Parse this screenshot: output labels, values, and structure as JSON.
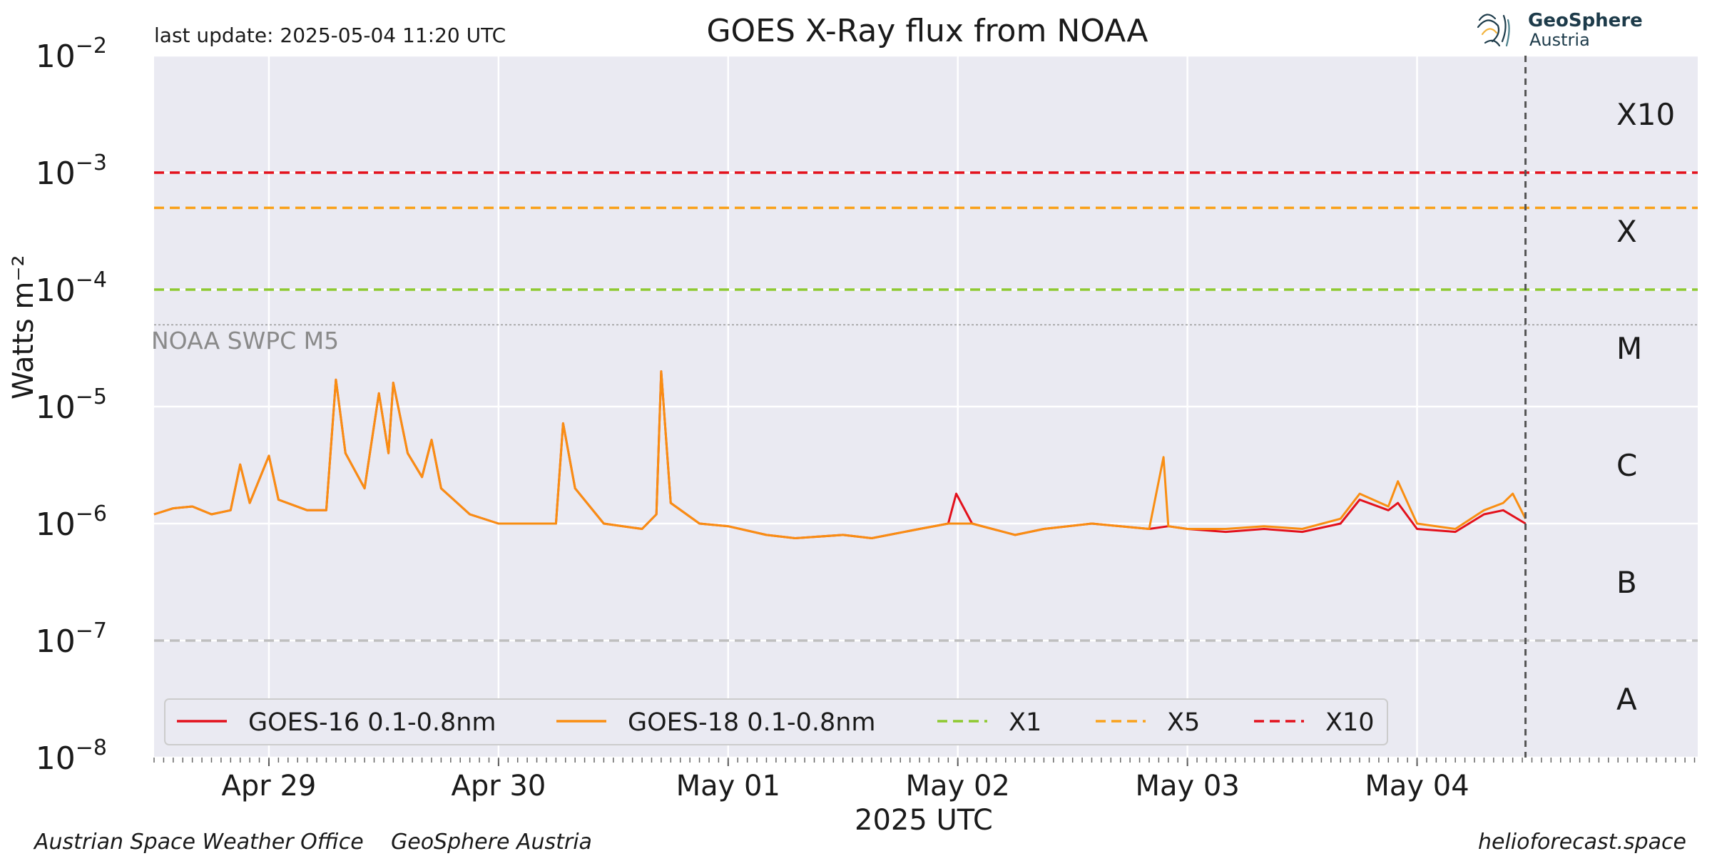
{
  "header": {
    "last_update": "last update: 2025-05-04 11:20 UTC",
    "title": "GOES X-Ray flux from NOAA",
    "logo_line1": "GeoSphere",
    "logo_line2": "Austria"
  },
  "footer": {
    "left1": "Austrian Space Weather Office",
    "left2": "GeoSphere Austria",
    "right": "helioforecast.space"
  },
  "colors": {
    "plot_bg": "#eaeaf2",
    "goes16": "#e3111c",
    "goes18": "#f98e12",
    "x1": "#8ec930",
    "x5": "#f9a21c",
    "x10": "#e3111c",
    "b_line": "#bfbfbf",
    "m5_line": "#999999"
  },
  "chart_data": {
    "type": "line",
    "title": "GOES X-Ray flux from NOAA",
    "xlabel": "2025 UTC",
    "ylabel": "Watts m⁻²",
    "y_scale": "log",
    "ylim": [
      1e-08,
      0.01
    ],
    "xlim": [
      "2025-04-28 12:00",
      "2025-05-05 05:20"
    ],
    "now": "2025-05-04 11:20",
    "x_ticks": [
      {
        "date": "2025-04-29",
        "label": "Apr 29"
      },
      {
        "date": "2025-04-30",
        "label": "Apr 30"
      },
      {
        "date": "2025-05-01",
        "label": "May 01"
      },
      {
        "date": "2025-05-02",
        "label": "May 02"
      },
      {
        "date": "2025-05-03",
        "label": "May 03"
      },
      {
        "date": "2025-05-04",
        "label": "May 04"
      }
    ],
    "y_ticks": [
      {
        "value": 1e-08,
        "base": "10",
        "exp": "−8"
      },
      {
        "value": 1e-07,
        "base": "10",
        "exp": "−7"
      },
      {
        "value": 1e-06,
        "base": "10",
        "exp": "−6"
      },
      {
        "value": 1e-05,
        "base": "10",
        "exp": "−5"
      },
      {
        "value": 0.0001,
        "base": "10",
        "exp": "−4"
      },
      {
        "value": 0.001,
        "base": "10",
        "exp": "−3"
      },
      {
        "value": 0.01,
        "base": "10",
        "exp": "−2"
      }
    ],
    "flare_classes": [
      {
        "label": "A",
        "value": 3.16e-08
      },
      {
        "label": "B",
        "value": 3.16e-07
      },
      {
        "label": "C",
        "value": 3.16e-06
      },
      {
        "label": "M",
        "value": 3.16e-05
      },
      {
        "label": "X",
        "value": 0.000316
      },
      {
        "label": "X10",
        "value": 0.00316
      }
    ],
    "reference_lines": [
      {
        "name": "X1",
        "value": 0.0001,
        "color": "#8ec930",
        "legend": true
      },
      {
        "name": "X5",
        "value": 0.0005,
        "color": "#f9a21c",
        "legend": true
      },
      {
        "name": "X10",
        "value": 0.001,
        "color": "#e3111c",
        "legend": true
      },
      {
        "name": "B",
        "value": 1e-07,
        "color": "#bfbfbf",
        "legend": false
      }
    ],
    "threshold": {
      "label": "NOAA SWPC M5",
      "value": 5e-05
    },
    "legend_position": "lower-left",
    "series": [
      {
        "name": "GOES-16 0.1-0.8nm",
        "color": "#e3111c",
        "points": [
          [
            "2025-04-28 12:00",
            1.2e-06
          ],
          [
            "2025-04-28 14:00",
            1.35e-06
          ],
          [
            "2025-04-28 16:00",
            1.4e-06
          ],
          [
            "2025-04-28 18:00",
            1.2e-06
          ],
          [
            "2025-04-28 20:00",
            1.3e-06
          ],
          [
            "2025-04-28 21:00",
            3.2e-06
          ],
          [
            "2025-04-28 22:00",
            1.5e-06
          ],
          [
            "2025-04-29 00:00",
            3.8e-06
          ],
          [
            "2025-04-29 01:00",
            1.6e-06
          ],
          [
            "2025-04-29 04:00",
            1.3e-06
          ],
          [
            "2025-04-29 06:00",
            1.3e-06
          ],
          [
            "2025-04-29 07:00",
            1.7e-05
          ],
          [
            "2025-04-29 08:00",
            4e-06
          ],
          [
            "2025-04-29 10:00",
            2e-06
          ],
          [
            "2025-04-29 11:30",
            1.3e-05
          ],
          [
            "2025-04-29 12:30",
            4e-06
          ],
          [
            "2025-04-29 13:00",
            1.6e-05
          ],
          [
            "2025-04-29 14:30",
            4e-06
          ],
          [
            "2025-04-29 16:00",
            2.5e-06
          ],
          [
            "2025-04-29 17:00",
            5.2e-06
          ],
          [
            "2025-04-29 18:00",
            2e-06
          ],
          [
            "2025-04-29 21:00",
            1.2e-06
          ],
          [
            "2025-04-30 00:00",
            1e-06
          ],
          [
            "2025-04-30 04:00",
            1e-06
          ],
          [
            "2025-04-30 06:00",
            1e-06
          ],
          [
            "2025-04-30 06:45",
            7.2e-06
          ],
          [
            "2025-04-30 08:00",
            2e-06
          ],
          [
            "2025-04-30 11:00",
            1e-06
          ],
          [
            "2025-04-30 15:00",
            9e-07
          ],
          [
            "2025-04-30 16:30",
            1.2e-06
          ],
          [
            "2025-04-30 17:00",
            2e-05
          ],
          [
            "2025-04-30 18:00",
            1.5e-06
          ],
          [
            "2025-04-30 21:00",
            1e-06
          ],
          [
            "2025-05-01 00:00",
            9.5e-07
          ],
          [
            "2025-05-01 04:00",
            8e-07
          ],
          [
            "2025-05-01 07:00",
            7.5e-07
          ],
          [
            "2025-05-01 12:00",
            8e-07
          ],
          [
            "2025-05-01 15:00",
            7.5e-07
          ],
          [
            "2025-05-01 20:00",
            9e-07
          ],
          [
            "2025-05-01 23:00",
            1e-06
          ],
          [
            "2025-05-01 23:50",
            1.8e-06
          ],
          [
            "2025-05-02 01:30",
            1e-06
          ],
          [
            "2025-05-02 06:00",
            8e-07
          ],
          [
            "2025-05-02 09:00",
            9e-07
          ],
          [
            "2025-05-02 14:00",
            1e-06
          ],
          [
            "2025-05-02 20:00",
            9e-07
          ],
          [
            "2025-05-02 22:00",
            9.5e-07
          ],
          [
            "2025-05-03 00:00",
            9e-07
          ],
          [
            "2025-05-03 04:00",
            8.5e-07
          ],
          [
            "2025-05-03 08:00",
            9e-07
          ],
          [
            "2025-05-03 12:00",
            8.5e-07
          ],
          [
            "2025-05-03 16:00",
            1e-06
          ],
          [
            "2025-05-03 18:00",
            1.6e-06
          ],
          [
            "2025-05-03 21:00",
            1.3e-06
          ],
          [
            "2025-05-03 22:00",
            1.5e-06
          ],
          [
            "2025-05-04 00:00",
            9e-07
          ],
          [
            "2025-05-04 04:00",
            8.5e-07
          ],
          [
            "2025-05-04 07:00",
            1.2e-06
          ],
          [
            "2025-05-04 09:00",
            1.3e-06
          ],
          [
            "2025-05-04 11:20",
            1e-06
          ]
        ]
      },
      {
        "name": "GOES-18 0.1-0.8nm",
        "color": "#f98e12",
        "points": [
          [
            "2025-04-28 12:00",
            1.2e-06
          ],
          [
            "2025-04-28 14:00",
            1.35e-06
          ],
          [
            "2025-04-28 16:00",
            1.4e-06
          ],
          [
            "2025-04-28 18:00",
            1.2e-06
          ],
          [
            "2025-04-28 20:00",
            1.3e-06
          ],
          [
            "2025-04-28 21:00",
            3.2e-06
          ],
          [
            "2025-04-28 22:00",
            1.5e-06
          ],
          [
            "2025-04-29 00:00",
            3.8e-06
          ],
          [
            "2025-04-29 01:00",
            1.6e-06
          ],
          [
            "2025-04-29 04:00",
            1.3e-06
          ],
          [
            "2025-04-29 06:00",
            1.3e-06
          ],
          [
            "2025-04-29 07:00",
            1.7e-05
          ],
          [
            "2025-04-29 08:00",
            4e-06
          ],
          [
            "2025-04-29 10:00",
            2e-06
          ],
          [
            "2025-04-29 11:30",
            1.3e-05
          ],
          [
            "2025-04-29 12:30",
            4e-06
          ],
          [
            "2025-04-29 13:00",
            1.6e-05
          ],
          [
            "2025-04-29 14:30",
            4e-06
          ],
          [
            "2025-04-29 16:00",
            2.5e-06
          ],
          [
            "2025-04-29 17:00",
            5.2e-06
          ],
          [
            "2025-04-29 18:00",
            2e-06
          ],
          [
            "2025-04-29 21:00",
            1.2e-06
          ],
          [
            "2025-04-30 00:00",
            1e-06
          ],
          [
            "2025-04-30 04:00",
            1e-06
          ],
          [
            "2025-04-30 06:00",
            1e-06
          ],
          [
            "2025-04-30 06:45",
            7.2e-06
          ],
          [
            "2025-04-30 08:00",
            2e-06
          ],
          [
            "2025-04-30 11:00",
            1e-06
          ],
          [
            "2025-04-30 15:00",
            9e-07
          ],
          [
            "2025-04-30 16:30",
            1.2e-06
          ],
          [
            "2025-04-30 17:00",
            2e-05
          ],
          [
            "2025-04-30 18:00",
            1.5e-06
          ],
          [
            "2025-04-30 21:00",
            1e-06
          ],
          [
            "2025-05-01 00:00",
            9.5e-07
          ],
          [
            "2025-05-01 04:00",
            8e-07
          ],
          [
            "2025-05-01 07:00",
            7.5e-07
          ],
          [
            "2025-05-01 12:00",
            8e-07
          ],
          [
            "2025-05-01 15:00",
            7.5e-07
          ],
          [
            "2025-05-01 20:00",
            9e-07
          ],
          [
            "2025-05-01 23:00",
            1e-06
          ],
          [
            "2025-05-02 01:30",
            1e-06
          ],
          [
            "2025-05-02 06:00",
            8e-07
          ],
          [
            "2025-05-02 09:00",
            9e-07
          ],
          [
            "2025-05-02 14:00",
            1e-06
          ],
          [
            "2025-05-02 20:00",
            9e-07
          ],
          [
            "2025-05-02 21:30",
            3.7e-06
          ],
          [
            "2025-05-02 22:00",
            9.5e-07
          ],
          [
            "2025-05-03 00:00",
            9e-07
          ],
          [
            "2025-05-03 04:00",
            9e-07
          ],
          [
            "2025-05-03 08:00",
            9.5e-07
          ],
          [
            "2025-05-03 12:00",
            9e-07
          ],
          [
            "2025-05-03 16:00",
            1.1e-06
          ],
          [
            "2025-05-03 18:00",
            1.8e-06
          ],
          [
            "2025-05-03 21:00",
            1.4e-06
          ],
          [
            "2025-05-03 22:00",
            2.3e-06
          ],
          [
            "2025-05-04 00:00",
            1e-06
          ],
          [
            "2025-05-04 04:00",
            9e-07
          ],
          [
            "2025-05-04 07:00",
            1.3e-06
          ],
          [
            "2025-05-04 09:00",
            1.5e-06
          ],
          [
            "2025-05-04 10:00",
            1.8e-06
          ],
          [
            "2025-05-04 11:20",
            1.1e-06
          ]
        ]
      }
    ]
  }
}
